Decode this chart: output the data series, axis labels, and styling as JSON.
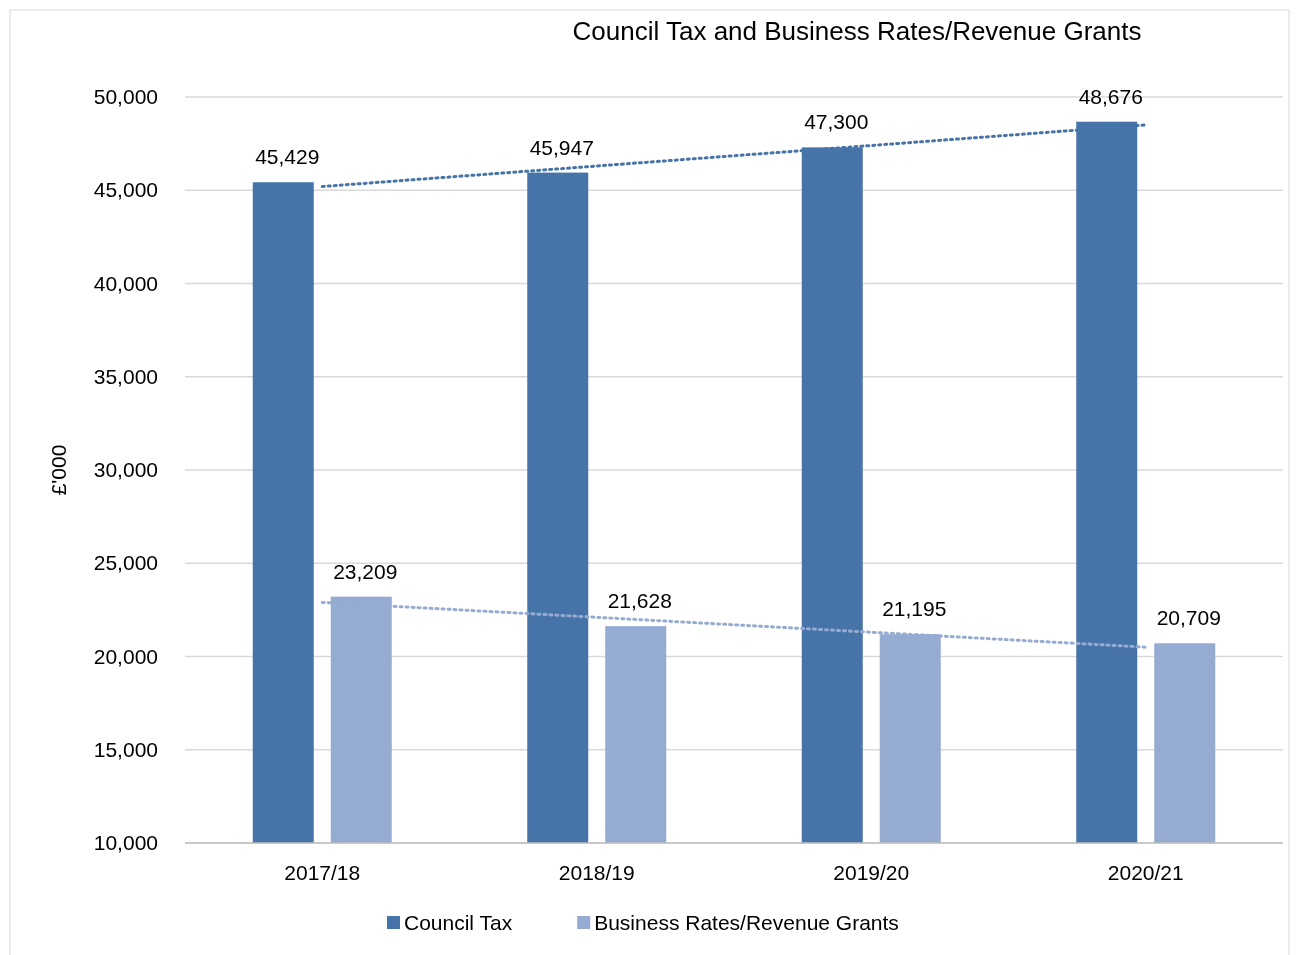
{
  "chart_data": {
    "type": "bar",
    "title": "Council Tax and Business Rates/Revenue Grants",
    "ylabel": "£'000",
    "categories": [
      "2017/18",
      "2018/19",
      "2019/20",
      "2020/21"
    ],
    "series": [
      {
        "name": "Council Tax",
        "color": "#4674a8",
        "values": [
          45429,
          45947,
          47300,
          48676
        ],
        "value_labels": [
          "45,429",
          "45,947",
          "47,300",
          "48,676"
        ]
      },
      {
        "name": "Business Rates/Revenue Grants",
        "color": "#95abd2",
        "values": [
          23209,
          21628,
          21195,
          20709
        ],
        "value_labels": [
          "23,209",
          "21,628",
          "21,195",
          "20,709"
        ]
      },
      {
        "type": "line",
        "color": "#4674a8",
        "x": [
          "2017/18",
          "2018/19",
          "2019/20",
          "2020/21"
        ],
        "values": [
          45200,
          46300,
          47400,
          48500
        ],
        "line_style": "dotted",
        "marker": "none"
      },
      {
        "type": "line",
        "color": "#95abd2",
        "x": [
          "2017/18",
          "2018/19",
          "2019/20",
          "2020/21"
        ],
        "values": [
          22900,
          22100,
          21300,
          20500
        ],
        "line_style": "dotted",
        "marker": "none"
      }
    ],
    "ylim": [
      10000,
      50000
    ],
    "yticks": [
      {
        "value": 10000,
        "label": "10,000"
      },
      {
        "value": 15000,
        "label": "15,000"
      },
      {
        "value": 20000,
        "label": "20,000"
      },
      {
        "value": 25000,
        "label": "25,000"
      },
      {
        "value": 30000,
        "label": "30,000"
      },
      {
        "value": 35000,
        "label": "35,000"
      },
      {
        "value": 40000,
        "label": "40,000"
      },
      {
        "value": 45000,
        "label": "45,000"
      },
      {
        "value": 50000,
        "label": "50,000"
      }
    ],
    "grid": "y",
    "legend": "bottom"
  }
}
